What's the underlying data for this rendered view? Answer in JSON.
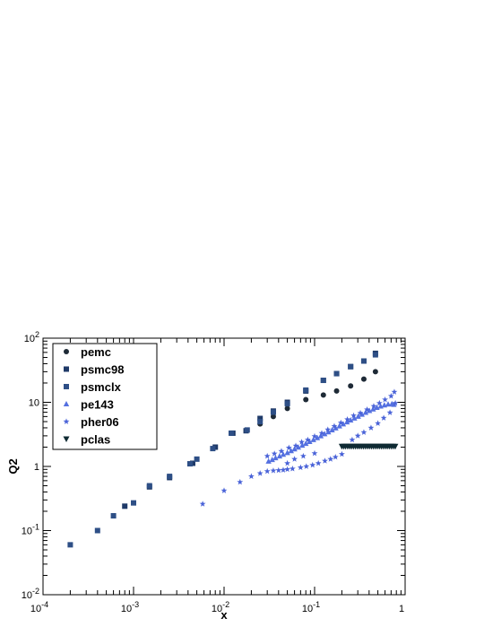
{
  "chart_data": {
    "type": "scatter",
    "xscale": "log",
    "yscale": "log",
    "xlim": [
      0.0001,
      1
    ],
    "ylim": [
      0.01,
      100
    ],
    "xlabel": "x",
    "ylabel": "Q2",
    "grid": false,
    "legend_position": "top-left",
    "x_ticks": [
      {
        "value": 0.0001,
        "base": "10",
        "exp": "-4"
      },
      {
        "value": 0.001,
        "base": "10",
        "exp": "-3"
      },
      {
        "value": 0.01,
        "base": "10",
        "exp": "-2"
      },
      {
        "value": 0.1,
        "base": "10",
        "exp": "-1"
      },
      {
        "value": 1,
        "base": "1",
        "exp": ""
      }
    ],
    "y_ticks": [
      {
        "value": 0.01,
        "base": "10",
        "exp": "-2"
      },
      {
        "value": 0.1,
        "base": "10",
        "exp": "-1"
      },
      {
        "value": 1,
        "base": "1",
        "exp": ""
      },
      {
        "value": 10,
        "base": "10",
        "exp": ""
      },
      {
        "value": 100,
        "base": "10",
        "exp": "2"
      }
    ],
    "series": [
      {
        "name": "pemc",
        "marker": "circle",
        "color": "#1e2a36",
        "points": [
          [
            0.025,
            4.6
          ],
          [
            0.035,
            6.0
          ],
          [
            0.05,
            8.0
          ],
          [
            0.08,
            11.0
          ],
          [
            0.125,
            13.0
          ],
          [
            0.175,
            15.0
          ],
          [
            0.25,
            18.0
          ],
          [
            0.35,
            23.0
          ],
          [
            0.47,
            30.0
          ]
        ]
      },
      {
        "name": "psmc98",
        "marker": "square",
        "color": "#1f3a68",
        "points": [
          [
            0.0008,
            0.24
          ],
          [
            0.0015,
            0.48
          ],
          [
            0.0025,
            0.67
          ],
          [
            0.0045,
            1.12
          ],
          [
            0.008,
            2.0
          ],
          [
            0.0125,
            3.3
          ],
          [
            0.0175,
            3.6
          ],
          [
            0.025,
            5.6
          ],
          [
            0.035,
            7.3
          ],
          [
            0.05,
            10.0
          ],
          [
            0.08,
            15.0
          ],
          [
            0.125,
            22.0
          ],
          [
            0.175,
            28.0
          ],
          [
            0.25,
            36.0
          ],
          [
            0.35,
            44.0
          ],
          [
            0.47,
            58.0
          ]
        ]
      },
      {
        "name": "psmclx",
        "marker": "square",
        "color": "#2e4f86",
        "points": [
          [
            0.0002,
            0.06
          ],
          [
            0.0004,
            0.1
          ],
          [
            0.0006,
            0.17
          ],
          [
            0.001,
            0.27
          ],
          [
            0.0015,
            0.5
          ],
          [
            0.0025,
            0.7
          ],
          [
            0.0042,
            1.1
          ],
          [
            0.005,
            1.3
          ],
          [
            0.0075,
            1.9
          ],
          [
            0.012,
            3.3
          ],
          [
            0.018,
            3.7
          ],
          [
            0.025,
            5.0
          ],
          [
            0.035,
            7.0
          ],
          [
            0.05,
            9.5
          ],
          [
            0.08,
            15.5
          ],
          [
            0.125,
            22.0
          ],
          [
            0.175,
            28.0
          ],
          [
            0.25,
            36.0
          ],
          [
            0.35,
            44.0
          ],
          [
            0.47,
            55.0
          ]
        ]
      },
      {
        "name": "pe143",
        "marker": "triangle",
        "color": "#5470e0",
        "points": [
          [
            0.031,
            1.2
          ],
          [
            0.034,
            1.27
          ],
          [
            0.037,
            1.35
          ],
          [
            0.041,
            1.44
          ],
          [
            0.045,
            1.53
          ],
          [
            0.05,
            1.63
          ],
          [
            0.055,
            1.74
          ],
          [
            0.06,
            1.86
          ],
          [
            0.066,
            1.98
          ],
          [
            0.073,
            2.12
          ],
          [
            0.08,
            2.26
          ],
          [
            0.088,
            2.42
          ],
          [
            0.097,
            2.6
          ],
          [
            0.107,
            2.78
          ],
          [
            0.117,
            2.98
          ],
          [
            0.129,
            3.2
          ],
          [
            0.142,
            3.43
          ],
          [
            0.156,
            3.68
          ],
          [
            0.171,
            3.95
          ],
          [
            0.188,
            4.25
          ],
          [
            0.207,
            4.56
          ],
          [
            0.228,
            4.9
          ],
          [
            0.25,
            5.25
          ],
          [
            0.275,
            5.62
          ],
          [
            0.303,
            6.0
          ],
          [
            0.333,
            6.45
          ],
          [
            0.366,
            6.9
          ],
          [
            0.403,
            7.35
          ],
          [
            0.443,
            7.8
          ],
          [
            0.487,
            8.25
          ],
          [
            0.536,
            8.65
          ],
          [
            0.59,
            9.0
          ],
          [
            0.649,
            9.3
          ],
          [
            0.714,
            9.4
          ],
          [
            0.75,
            9.2
          ]
        ]
      },
      {
        "name": "pher06",
        "marker": "star",
        "color": "#4a63d8",
        "points": [
          [
            0.0058,
            0.26
          ],
          [
            0.01,
            0.42
          ],
          [
            0.015,
            0.57
          ],
          [
            0.02,
            0.7
          ],
          [
            0.025,
            0.78
          ],
          [
            0.03,
            0.84
          ],
          [
            0.035,
            0.86
          ],
          [
            0.04,
            0.87
          ],
          [
            0.045,
            0.88
          ],
          [
            0.05,
            0.9
          ],
          [
            0.057,
            0.92
          ],
          [
            0.07,
            0.96
          ],
          [
            0.081,
            1.0
          ],
          [
            0.095,
            1.05
          ],
          [
            0.11,
            1.12
          ],
          [
            0.13,
            1.22
          ],
          [
            0.15,
            1.3
          ],
          [
            0.17,
            1.4
          ],
          [
            0.2,
            1.55
          ],
          [
            0.03,
            1.45
          ],
          [
            0.036,
            1.58
          ],
          [
            0.043,
            1.73
          ],
          [
            0.052,
            1.95
          ],
          [
            0.062,
            2.1
          ],
          [
            0.072,
            2.4
          ],
          [
            0.084,
            2.6
          ],
          [
            0.1,
            2.95
          ],
          [
            0.12,
            3.3
          ],
          [
            0.14,
            3.75
          ],
          [
            0.165,
            4.25
          ],
          [
            0.195,
            4.8
          ],
          [
            0.23,
            5.4
          ],
          [
            0.27,
            6.2
          ],
          [
            0.32,
            6.8
          ],
          [
            0.38,
            7.7
          ],
          [
            0.45,
            8.7
          ],
          [
            0.52,
            9.7
          ],
          [
            0.6,
            11.0
          ],
          [
            0.7,
            12.5
          ],
          [
            0.05,
            1.12
          ],
          [
            0.06,
            1.3
          ],
          [
            0.075,
            1.45
          ],
          [
            0.1,
            1.6
          ],
          [
            0.26,
            2.6
          ],
          [
            0.3,
            3.0
          ],
          [
            0.35,
            3.4
          ],
          [
            0.42,
            4.0
          ],
          [
            0.5,
            4.7
          ],
          [
            0.58,
            5.7
          ],
          [
            0.68,
            6.9
          ],
          [
            0.78,
            9.7
          ],
          [
            0.76,
            14.5
          ]
        ]
      },
      {
        "name": "pclas",
        "marker": "triangle-down",
        "color": "#0f2a33",
        "points": [
          [
            0.2,
            2.05
          ],
          [
            0.21,
            2.05
          ],
          [
            0.22,
            2.05
          ],
          [
            0.232,
            2.05
          ],
          [
            0.244,
            2.05
          ],
          [
            0.256,
            2.05
          ],
          [
            0.269,
            2.05
          ],
          [
            0.283,
            2.05
          ],
          [
            0.298,
            2.05
          ],
          [
            0.313,
            2.05
          ],
          [
            0.329,
            2.05
          ],
          [
            0.346,
            2.05
          ],
          [
            0.364,
            2.05
          ],
          [
            0.383,
            2.05
          ],
          [
            0.403,
            2.05
          ],
          [
            0.424,
            2.05
          ],
          [
            0.446,
            2.05
          ],
          [
            0.469,
            2.05
          ],
          [
            0.493,
            2.05
          ],
          [
            0.519,
            2.05
          ],
          [
            0.546,
            2.05
          ],
          [
            0.574,
            2.05
          ],
          [
            0.604,
            2.05
          ],
          [
            0.635,
            2.05
          ],
          [
            0.668,
            2.05
          ],
          [
            0.703,
            2.05
          ],
          [
            0.739,
            2.05
          ],
          [
            0.777,
            2.05
          ]
        ]
      }
    ]
  }
}
